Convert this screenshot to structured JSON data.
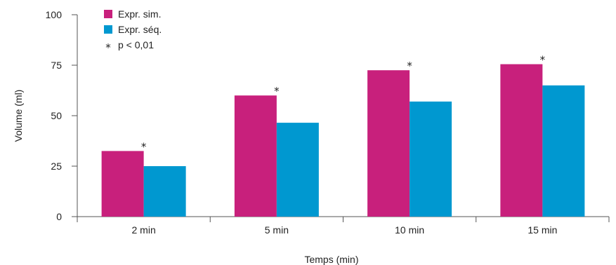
{
  "chart_data": {
    "type": "bar",
    "categories": [
      "2 min",
      "5 min",
      "10 min",
      "15 min"
    ],
    "series": [
      {
        "name": "Expr. sim.",
        "values": [
          32.5,
          60,
          72.5,
          75.5
        ],
        "color": "#c8207c"
      },
      {
        "name": "Expr. séq.",
        "values": [
          25,
          46.5,
          57,
          65
        ],
        "color": "#0098d0"
      }
    ],
    "significance": {
      "marker": "*",
      "label": "p < 0,01",
      "categories": [
        "2 min",
        "5 min",
        "10 min",
        "15 min"
      ]
    },
    "xlabel": "Temps (min)",
    "ylabel": "Volume (ml)",
    "ylim": [
      0,
      100
    ],
    "yticks": [
      0,
      25,
      50,
      75,
      100
    ],
    "grid": false,
    "legend_position": "top-left"
  }
}
